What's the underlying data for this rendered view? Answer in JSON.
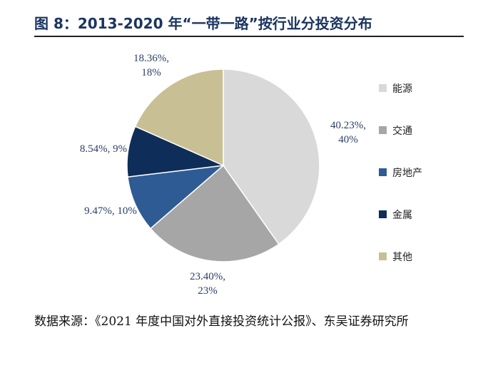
{
  "title": "图 8：2013-2020 年“一带一路”按行业分投资分布",
  "source": "数据来源：《2021 年度中国对外直接投资统计公报》、东吴证券研究所",
  "chart_data": {
    "type": "pie",
    "title": "",
    "legend_placement": "right",
    "slices": [
      {
        "name": "能源",
        "value": 40.23,
        "label": [
          "40.23%,",
          "40%"
        ],
        "color": "#d9d9d9"
      },
      {
        "name": "交通",
        "value": 23.4,
        "label": [
          "23.40%,",
          "23%"
        ],
        "color": "#a6a6a6"
      },
      {
        "name": "房地产",
        "value": 9.47,
        "label": [
          "9.47%, 10%"
        ],
        "color": "#2f5b94"
      },
      {
        "name": "金属",
        "value": 8.54,
        "label": [
          "8.54%, 9%"
        ],
        "color": "#0f2d59"
      },
      {
        "name": "其他",
        "value": 18.36,
        "label": [
          "18.36%,",
          "18%"
        ],
        "color": "#c9bf94"
      }
    ]
  }
}
